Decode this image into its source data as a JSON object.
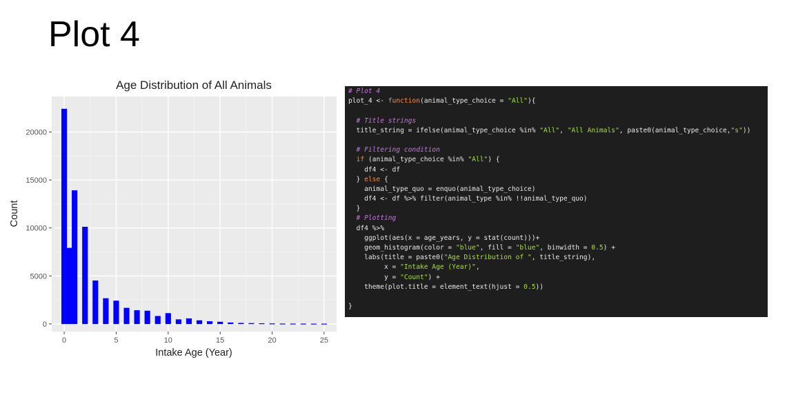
{
  "slide": {
    "title": "Plot 4"
  },
  "chart_data": {
    "type": "bar",
    "title": "Age Distribution of All Animals",
    "xlabel": "Intake Age (Year)",
    "ylabel": "Count",
    "xlim": [
      -1.2,
      26.2
    ],
    "ylim": [
      -800,
      23700
    ],
    "xticks": [
      0,
      5,
      10,
      15,
      20,
      25
    ],
    "yticks": [
      0,
      5000,
      10000,
      15000,
      20000
    ],
    "binwidth": 0.5,
    "bar_color": "#0000ff",
    "panel_bg": "#ebebeb",
    "grid": true,
    "x": [
      0,
      0.5,
      1,
      2,
      3,
      4,
      5,
      6,
      7,
      8,
      9,
      10,
      11,
      12,
      13,
      14,
      15,
      16,
      17,
      18,
      19,
      20,
      21,
      22,
      23,
      24,
      25
    ],
    "values": [
      22400,
      7900,
      13900,
      10100,
      4500,
      2650,
      2400,
      1650,
      1400,
      1350,
      800,
      1100,
      450,
      550,
      350,
      250,
      200,
      120,
      80,
      60,
      40,
      25,
      15,
      10,
      8,
      5,
      3
    ]
  },
  "code": {
    "lines": [
      [
        {
          "t": "# Plot 4",
          "c": "comment"
        }
      ],
      [
        {
          "t": "plot_4 <- ",
          "c": "plain"
        },
        {
          "t": "function",
          "c": "keyword"
        },
        {
          "t": "(animal_type_choice = ",
          "c": "plain"
        },
        {
          "t": "\"All\"",
          "c": "string"
        },
        {
          "t": "){",
          "c": "plain"
        }
      ],
      [],
      [
        {
          "t": "  # Title strings",
          "c": "comment"
        }
      ],
      [
        {
          "t": "  title_string = ifelse(animal_type_choice %in% ",
          "c": "plain"
        },
        {
          "t": "\"All\"",
          "c": "string"
        },
        {
          "t": ", ",
          "c": "plain"
        },
        {
          "t": "\"All Animals\"",
          "c": "string"
        },
        {
          "t": ", paste0(animal_type_choice,",
          "c": "plain"
        },
        {
          "t": "\"s\"",
          "c": "string"
        },
        {
          "t": "))",
          "c": "plain"
        }
      ],
      [],
      [
        {
          "t": "  # Filtering condition",
          "c": "comment"
        }
      ],
      [
        {
          "t": "  ",
          "c": "plain"
        },
        {
          "t": "if",
          "c": "keyword"
        },
        {
          "t": " (animal_type_choice %in% ",
          "c": "plain"
        },
        {
          "t": "\"All\"",
          "c": "string"
        },
        {
          "t": ") {",
          "c": "plain"
        }
      ],
      [
        {
          "t": "    df4 <- df",
          "c": "plain"
        }
      ],
      [
        {
          "t": "  } ",
          "c": "plain"
        },
        {
          "t": "else",
          "c": "keyword"
        },
        {
          "t": " {",
          "c": "plain"
        }
      ],
      [
        {
          "t": "    animal_type_quo = enquo(animal_type_choice)",
          "c": "plain"
        }
      ],
      [
        {
          "t": "    df4 <- df %>% filter(animal_type %in% !!animal_type_quo)",
          "c": "plain"
        }
      ],
      [
        {
          "t": "  }",
          "c": "plain"
        }
      ],
      [
        {
          "t": "  # Plotting",
          "c": "comment"
        }
      ],
      [
        {
          "t": "  df4 %>%",
          "c": "plain"
        }
      ],
      [
        {
          "t": "    ggplot(aes(x = age_years, y = stat(count)))+",
          "c": "plain"
        }
      ],
      [
        {
          "t": "    geom_histogram(color = ",
          "c": "plain"
        },
        {
          "t": "\"blue\"",
          "c": "string"
        },
        {
          "t": ", fill = ",
          "c": "plain"
        },
        {
          "t": "\"blue\"",
          "c": "string"
        },
        {
          "t": ", binwidth = ",
          "c": "plain"
        },
        {
          "t": "0.5",
          "c": "number"
        },
        {
          "t": ") +",
          "c": "plain"
        }
      ],
      [
        {
          "t": "    labs(title = paste0(",
          "c": "plain"
        },
        {
          "t": "\"Age Distribution of \"",
          "c": "string"
        },
        {
          "t": ", title_string),",
          "c": "plain"
        }
      ],
      [
        {
          "t": "         x = ",
          "c": "plain"
        },
        {
          "t": "\"Intake Age (Year)\"",
          "c": "string"
        },
        {
          "t": ",",
          "c": "plain"
        }
      ],
      [
        {
          "t": "         y = ",
          "c": "plain"
        },
        {
          "t": "\"Count\"",
          "c": "string"
        },
        {
          "t": ") +",
          "c": "plain"
        }
      ],
      [
        {
          "t": "    theme(plot.title = element_text(hjust = ",
          "c": "plain"
        },
        {
          "t": "0.5",
          "c": "number"
        },
        {
          "t": "))",
          "c": "plain"
        }
      ],
      [],
      [
        {
          "t": "}",
          "c": "plain"
        }
      ]
    ]
  }
}
